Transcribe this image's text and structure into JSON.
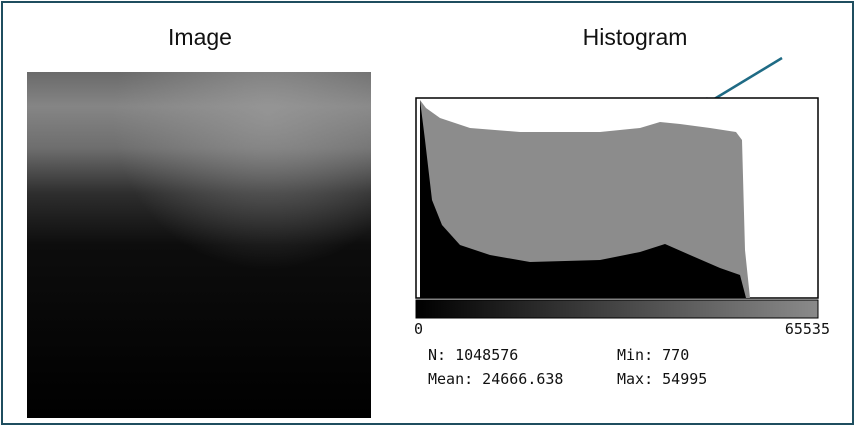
{
  "image_panel": {
    "title": "Image"
  },
  "histogram_panel": {
    "title": "Histogram",
    "axis_min": "0",
    "axis_max": "65535",
    "stats": {
      "n": "N: 1048576",
      "min": "Min: 770",
      "mean": "Mean: 24666.638",
      "max": "Max: 54995"
    }
  }
}
